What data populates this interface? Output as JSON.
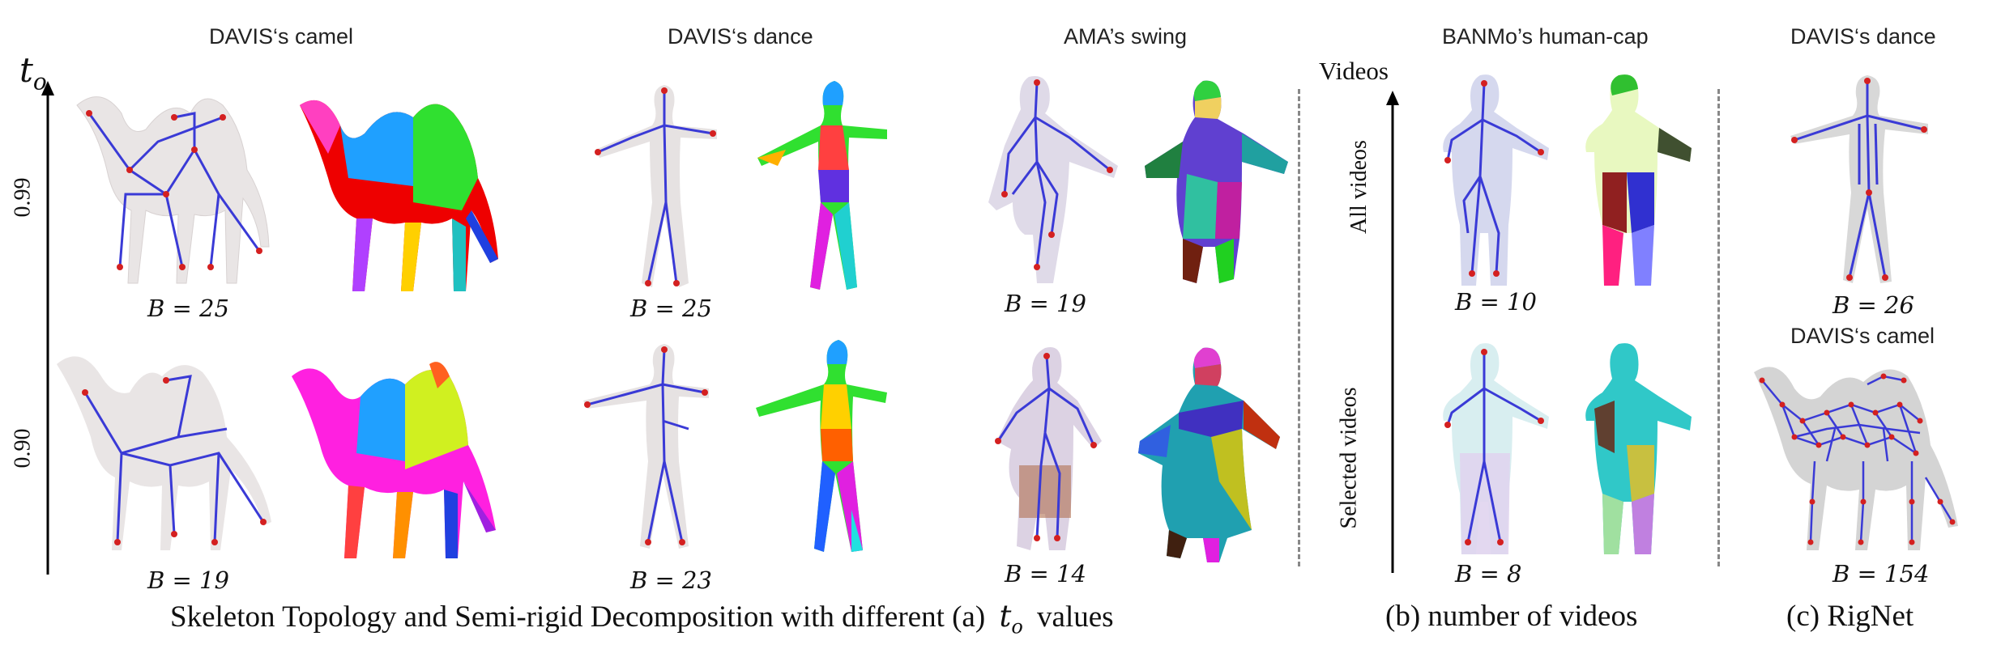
{
  "column_titles": {
    "davis_camel": "DAVIS‘s camel",
    "davis_dance": "DAVIS‘s dance",
    "ama_swing": "AMA’s swing",
    "banmo_human_cap": "BANMo’s human-cap",
    "rignet_dance": "DAVIS‘s dance",
    "rignet_camel": "DAVIS‘s camel"
  },
  "axis_a": {
    "symbol": "t",
    "subscript": "o",
    "top_value": "0.99",
    "bottom_value": "0.90"
  },
  "axis_b": {
    "title": "Videos",
    "top_label": "All videos",
    "bottom_label": "Selected videos"
  },
  "b_values": {
    "camel_top": "B = 25",
    "dance_top": "B = 25",
    "swing_top": "B = 19",
    "camel_bottom": "B = 19",
    "dance_bottom": "B = 23",
    "swing_bottom": "B = 14",
    "human_top": "B = 10",
    "human_bottom": "B = 8",
    "rignet_dance": "B = 26",
    "rignet_camel": "B = 154"
  },
  "captions": {
    "a_prefix": "Skeleton Topology and Semi-rigid Decomposition with different (a)",
    "a_symbol": "t",
    "a_subscript": "o",
    "a_suffix": "values",
    "b": "(b) number of videos",
    "c": "(c) RigNet"
  },
  "colors": {
    "axis": "#000000",
    "bone": "#3a3ad6",
    "joint": "#d42020",
    "mesh": "#e6e2e2",
    "separator": "#888888"
  }
}
